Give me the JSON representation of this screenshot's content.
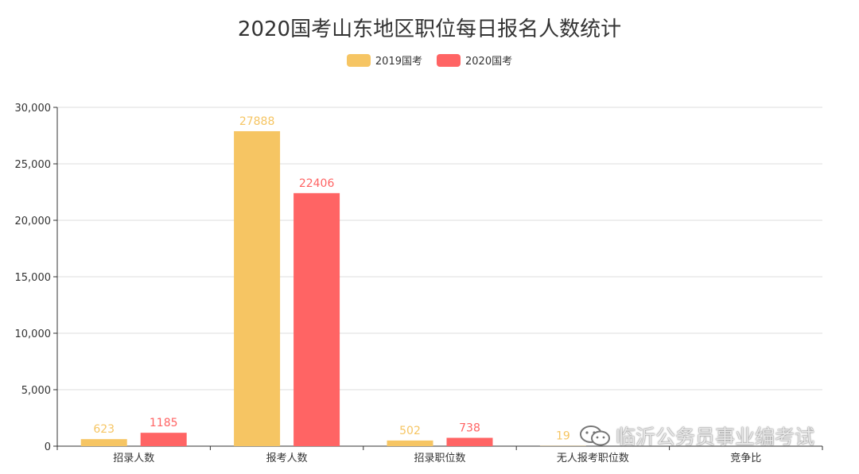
{
  "chart_data": {
    "type": "bar",
    "title": "2020国考山东地区职位每日报名人数统计",
    "categories": [
      "招录人数",
      "报考人数",
      "招录职位数",
      "无人报考职位数",
      "竞争比"
    ],
    "series": [
      {
        "name": "2019国考",
        "color": "#F6C563",
        "values": [
          623,
          27888,
          502,
          19,
          null
        ],
        "labels": [
          "623",
          "27888",
          "502",
          "19",
          ""
        ]
      },
      {
        "name": "2020国考",
        "color": "#FF6464",
        "values": [
          1185,
          22406,
          738,
          null,
          null
        ],
        "labels": [
          "1185",
          "22406",
          "738",
          "",
          ""
        ]
      }
    ],
    "ylim": [
      0,
      30000
    ],
    "yticks": [
      0,
      5000,
      10000,
      15000,
      20000,
      25000,
      30000
    ],
    "ytick_labels": [
      "0",
      "5,000",
      "10,000",
      "15,000",
      "20,000",
      "25,000",
      "30,000"
    ],
    "xlabel": "",
    "ylabel": "",
    "grid": true,
    "legend_position": "top-center"
  },
  "watermark": {
    "text": "临沂公务员事业编考试",
    "icon": "wechat-icon"
  }
}
